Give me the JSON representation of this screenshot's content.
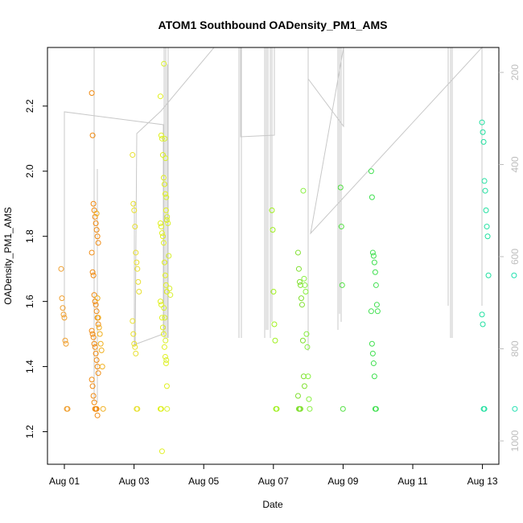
{
  "chart_data": {
    "type": "scatter",
    "title": "ATOM1 Southbound OADensity_PM1_AMS",
    "xlabel": "Date",
    "ylabel": "OADensity_PM1_AMS",
    "x_ticks": [
      "Aug 01",
      "Aug 03",
      "Aug 05",
      "Aug 07",
      "Aug 09",
      "Aug 11",
      "Aug 13"
    ],
    "xlim": [
      -0.5,
      13.5
    ],
    "ylim": [
      1.1,
      2.38
    ],
    "y_ticks": [
      "1.2",
      "1.4",
      "1.6",
      "1.8",
      "2.0",
      "2.2"
    ],
    "y2_ticks": [
      "200",
      "400",
      "600",
      "800",
      "1000"
    ],
    "y2lim": [
      1100,
      150
    ],
    "y2_reversed": true,
    "grid": false,
    "legend": "none",
    "colors": {
      "altitude_line": "#c8c8c8",
      "axis": "#000000",
      "right_axis": "#bdbdbd"
    },
    "series": [
      {
        "day": 0.0,
        "color": "#f0a030",
        "values": [
          1.7,
          1.61,
          1.58,
          1.56,
          1.55,
          1.48,
          1.47,
          1.27,
          1.27
        ]
      },
      {
        "day": 0.88,
        "color": "#f08a10",
        "values": [
          2.24,
          2.11,
          1.9,
          1.88,
          1.86,
          1.84,
          1.82,
          1.8,
          1.78,
          1.75,
          1.69,
          1.68,
          1.62,
          1.6,
          1.59,
          1.57,
          1.55,
          1.53,
          1.51,
          1.5,
          1.49,
          1.47,
          1.46,
          1.44,
          1.42,
          1.4,
          1.38,
          1.36,
          1.34,
          1.31,
          1.29,
          1.27,
          1.27,
          1.27,
          1.25
        ]
      },
      {
        "day": 1.02,
        "color": "#f0b020",
        "values": [
          1.87,
          1.61,
          1.55,
          1.52,
          1.5,
          1.47,
          1.45,
          1.4,
          1.27
        ]
      },
      {
        "day": 2.05,
        "color": "#e8e030",
        "values": [
          2.05,
          1.9,
          1.88,
          1.83,
          1.75,
          1.72,
          1.7,
          1.66,
          1.63,
          1.54,
          1.5,
          1.47,
          1.46,
          1.44,
          1.27,
          1.27
        ]
      },
      {
        "day": 2.85,
        "color": "#e0f020",
        "values": [
          2.23,
          2.11,
          2.1,
          2.05,
          1.98,
          1.96,
          1.93,
          1.88,
          1.85,
          1.84,
          1.83,
          1.81,
          1.8,
          1.78,
          1.72,
          1.68,
          1.65,
          1.63,
          1.6,
          1.59,
          1.55,
          1.52,
          1.5,
          1.46,
          1.43,
          1.41,
          1.34,
          1.27,
          1.27,
          1.14
        ]
      },
      {
        "day": 2.95,
        "color": "#d8f030",
        "values": [
          2.33,
          2.1,
          2.04,
          1.92,
          1.86,
          1.84,
          1.74,
          1.64,
          1.62,
          1.58,
          1.55,
          1.48,
          1.42,
          1.27
        ]
      },
      {
        "day": 6.05,
        "color": "#a0f020",
        "values": [
          1.88,
          1.82,
          1.63,
          1.53,
          1.48,
          1.27,
          1.27
        ]
      },
      {
        "day": 6.8,
        "color": "#80e030",
        "values": [
          1.75,
          1.7,
          1.66,
          1.65,
          1.61,
          1.59,
          1.48,
          1.37,
          1.34,
          1.31,
          1.27,
          1.27,
          1.27
        ]
      },
      {
        "day": 6.95,
        "color": "#88f040",
        "values": [
          1.94,
          1.67,
          1.65,
          1.63,
          1.5,
          1.46,
          1.37,
          1.3,
          1.27
        ]
      },
      {
        "day": 8.02,
        "color": "#50e040",
        "values": [
          1.95,
          1.83,
          1.65,
          1.27
        ]
      },
      {
        "day": 8.9,
        "color": "#40e050",
        "values": [
          2.0,
          1.92,
          1.75,
          1.74,
          1.72,
          1.69,
          1.65,
          1.59,
          1.57,
          1.57,
          1.47,
          1.44,
          1.41,
          1.37,
          1.27,
          1.27
        ]
      },
      {
        "day": 12.08,
        "color": "#20e0a0",
        "values": [
          2.15,
          2.12,
          2.09,
          1.97,
          1.94,
          1.88,
          1.83,
          1.8,
          1.68,
          1.56,
          1.53,
          1.27,
          1.27
        ]
      },
      {
        "day": 13.0,
        "color": "#20e0b0",
        "values": [
          1.68,
          1.27
        ]
      }
    ]
  }
}
